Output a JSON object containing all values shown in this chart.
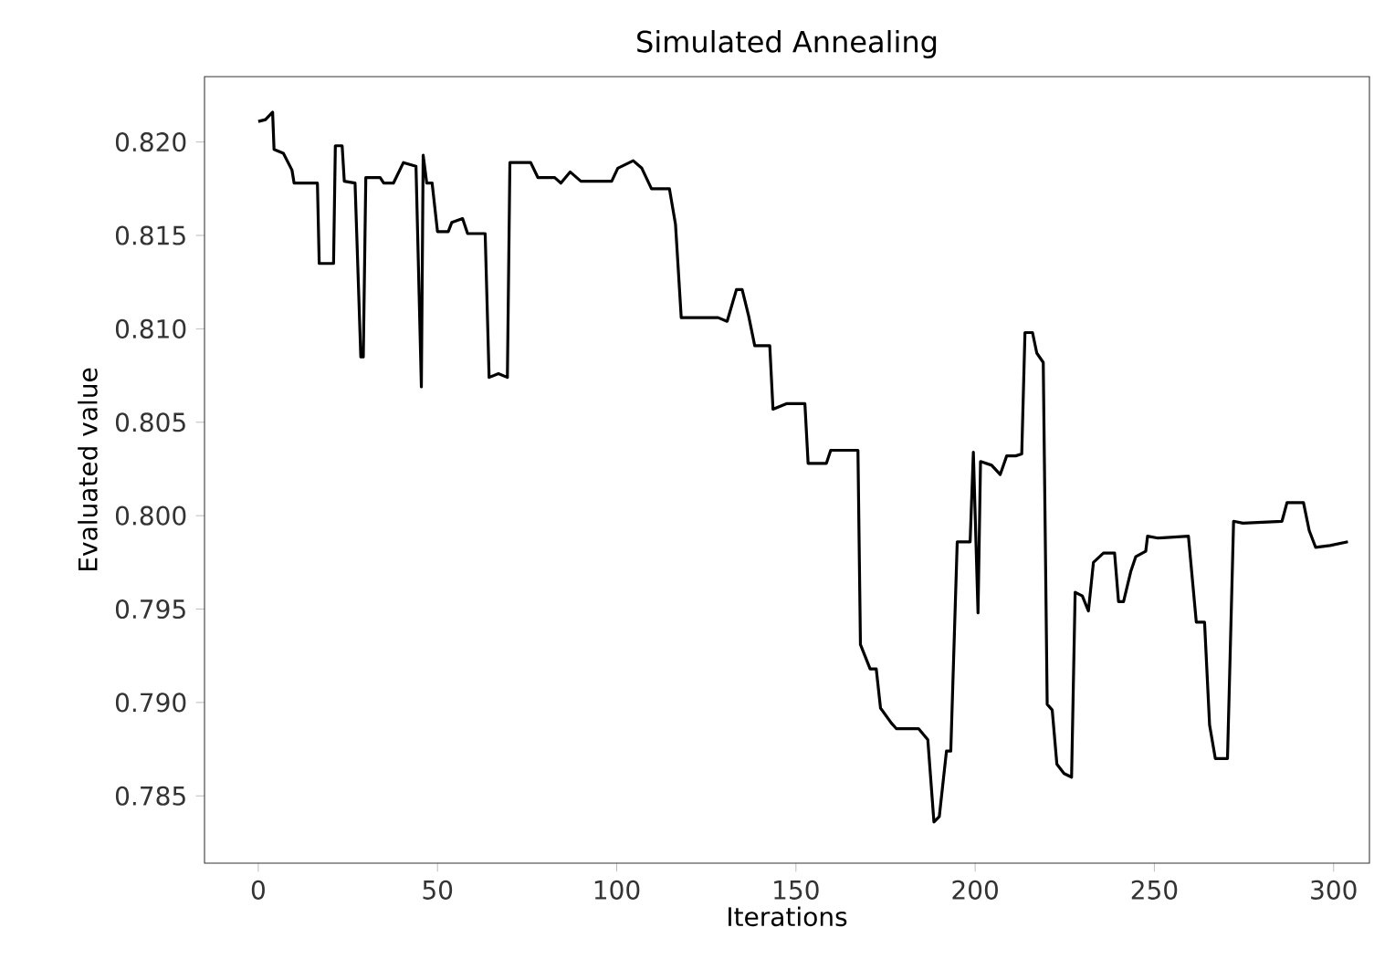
{
  "chart_data": {
    "type": "line",
    "title": "Simulated Annealing",
    "xlabel": "Iterations",
    "ylabel": "Evaluated value",
    "xlim": [
      -15,
      310
    ],
    "ylim": [
      0.7814,
      0.8235
    ],
    "xticks": [
      0,
      50,
      100,
      150,
      200,
      250,
      300
    ],
    "yticks": [
      {
        "value": 0.785,
        "label": "0.785"
      },
      {
        "value": 0.79,
        "label": "0.790"
      },
      {
        "value": 0.795,
        "label": "0.795"
      },
      {
        "value": 0.8,
        "label": "0.800"
      },
      {
        "value": 0.805,
        "label": "0.805"
      },
      {
        "value": 0.81,
        "label": "0.810"
      },
      {
        "value": 0.815,
        "label": "0.815"
      },
      {
        "value": 0.82,
        "label": "0.820"
      }
    ],
    "marker": "none",
    "line_style": "solid",
    "series": [
      {
        "color": "#000000",
        "x": [
          0,
          2,
          4,
          4.4,
          7,
          9.4,
          10,
          16.5,
          17,
          21,
          21.5,
          23.4,
          24,
          27,
          28.6,
          29.3,
          30,
          34,
          35,
          37.7,
          40.5,
          44,
          45.5,
          46,
          47,
          48.5,
          50,
          53,
          54,
          57,
          58.4,
          63.3,
          64.4,
          67,
          69.5,
          70.2,
          76,
          78,
          82.7,
          84.4,
          87,
          90,
          98.6,
          100.3,
          104.6,
          107,
          109.7,
          114.7,
          116.4,
          118,
          128.3,
          130.8,
          133.4,
          135,
          136.8,
          138.5,
          142.7,
          143.6,
          147.5,
          152.5,
          153.4,
          158.5,
          159.7,
          167.3,
          168,
          170.7,
          172.4,
          173.6,
          176.6,
          178,
          184.2,
          186.8,
          188.5,
          190,
          192,
          193.2,
          195,
          198.6,
          199.5,
          200.8,
          201.5,
          204.6,
          207,
          208.8,
          211.3,
          213,
          213.9,
          216,
          217.2,
          219,
          220.1,
          221.5,
          222.8,
          224.8,
          226.9,
          227.9,
          229.9,
          231.6,
          233,
          235.8,
          238.9,
          240,
          241.4,
          243.4,
          244.8,
          247.6,
          248.1,
          251,
          259.5,
          261.7,
          264,
          265.4,
          267,
          270.4,
          272.1,
          274.7,
          285.6,
          287,
          291.6,
          293.2,
          295,
          299,
          304
        ],
        "values": [
          0.8211,
          0.8212,
          0.8216,
          0.8196,
          0.8194,
          0.8185,
          0.8178,
          0.8178,
          0.8135,
          0.8135,
          0.8198,
          0.8198,
          0.8179,
          0.8178,
          0.8085,
          0.8085,
          0.8181,
          0.8181,
          0.8178,
          0.8178,
          0.8189,
          0.8187,
          0.8069,
          0.8193,
          0.8178,
          0.8178,
          0.8152,
          0.8152,
          0.8157,
          0.8159,
          0.8151,
          0.8151,
          0.8074,
          0.8076,
          0.8074,
          0.8189,
          0.8189,
          0.8181,
          0.8181,
          0.8178,
          0.8184,
          0.8179,
          0.8179,
          0.8186,
          0.819,
          0.8186,
          0.8175,
          0.8175,
          0.8156,
          0.8106,
          0.8106,
          0.8104,
          0.8121,
          0.8121,
          0.8107,
          0.8091,
          0.8091,
          0.8057,
          0.806,
          0.806,
          0.8028,
          0.8028,
          0.8035,
          0.8035,
          0.7931,
          0.7918,
          0.7918,
          0.7897,
          0.7889,
          0.7886,
          0.7886,
          0.788,
          0.7836,
          0.7839,
          0.7874,
          0.7874,
          0.7986,
          0.7986,
          0.8034,
          0.7948,
          0.8029,
          0.8027,
          0.8022,
          0.8032,
          0.8032,
          0.8033,
          0.8098,
          0.8098,
          0.8087,
          0.8082,
          0.7899,
          0.7896,
          0.7867,
          0.7862,
          0.786,
          0.7959,
          0.7957,
          0.7949,
          0.7975,
          0.798,
          0.798,
          0.7954,
          0.7954,
          0.797,
          0.7978,
          0.7981,
          0.7989,
          0.7988,
          0.7989,
          0.7943,
          0.7943,
          0.7888,
          0.787,
          0.787,
          0.7997,
          0.7996,
          0.7997,
          0.8007,
          0.8007,
          0.7992,
          0.7983,
          0.7984,
          0.7986
        ]
      }
    ]
  }
}
